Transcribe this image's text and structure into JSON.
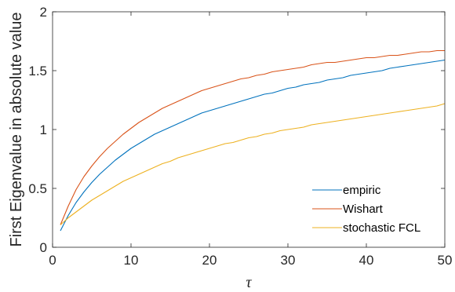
{
  "chart_data": {
    "type": "line",
    "xlabel": "τ",
    "ylabel": "First Eigenvalue in absolute value",
    "xlim": [
      0,
      50
    ],
    "ylim": [
      0,
      2
    ],
    "xticks": [
      0,
      10,
      20,
      30,
      40,
      50
    ],
    "yticks": [
      0,
      0.5,
      1,
      1.5,
      2
    ],
    "xtick_labels": [
      "0",
      "10",
      "20",
      "30",
      "40",
      "50"
    ],
    "ytick_labels": [
      "0",
      "0.5",
      "1",
      "1.5",
      "2"
    ],
    "grid": false,
    "legend_position": "bottom-right",
    "x": [
      1,
      2,
      3,
      4,
      5,
      6,
      7,
      8,
      9,
      10,
      11,
      12,
      13,
      14,
      15,
      16,
      17,
      18,
      19,
      20,
      21,
      22,
      23,
      24,
      25,
      26,
      27,
      28,
      29,
      30,
      31,
      32,
      33,
      34,
      35,
      36,
      37,
      38,
      39,
      40,
      41,
      42,
      43,
      44,
      45,
      46,
      47,
      48,
      49,
      50
    ],
    "series": [
      {
        "name": "empiric",
        "color": "#0072BD",
        "values": [
          0.14,
          0.27,
          0.38,
          0.47,
          0.55,
          0.62,
          0.68,
          0.74,
          0.79,
          0.84,
          0.88,
          0.92,
          0.96,
          0.99,
          1.02,
          1.05,
          1.08,
          1.11,
          1.14,
          1.16,
          1.18,
          1.2,
          1.22,
          1.24,
          1.26,
          1.28,
          1.3,
          1.31,
          1.33,
          1.35,
          1.36,
          1.38,
          1.39,
          1.4,
          1.42,
          1.43,
          1.44,
          1.46,
          1.47,
          1.48,
          1.49,
          1.5,
          1.52,
          1.53,
          1.54,
          1.55,
          1.56,
          1.57,
          1.58,
          1.59
        ]
      },
      {
        "name": "Wishart",
        "color": "#D95319",
        "values": [
          0.19,
          0.35,
          0.49,
          0.6,
          0.69,
          0.77,
          0.84,
          0.9,
          0.96,
          1.01,
          1.06,
          1.1,
          1.14,
          1.18,
          1.21,
          1.24,
          1.27,
          1.3,
          1.33,
          1.35,
          1.37,
          1.39,
          1.41,
          1.43,
          1.44,
          1.46,
          1.47,
          1.49,
          1.5,
          1.51,
          1.52,
          1.53,
          1.55,
          1.56,
          1.57,
          1.57,
          1.58,
          1.59,
          1.6,
          1.61,
          1.61,
          1.62,
          1.63,
          1.63,
          1.64,
          1.65,
          1.66,
          1.66,
          1.67,
          1.67
        ]
      },
      {
        "name": "stochastic FCL",
        "color": "#EDB120",
        "values": [
          0.19,
          0.25,
          0.3,
          0.35,
          0.4,
          0.44,
          0.48,
          0.52,
          0.56,
          0.59,
          0.62,
          0.65,
          0.68,
          0.71,
          0.73,
          0.76,
          0.78,
          0.8,
          0.82,
          0.84,
          0.86,
          0.88,
          0.89,
          0.91,
          0.93,
          0.94,
          0.96,
          0.97,
          0.99,
          1.0,
          1.01,
          1.02,
          1.04,
          1.05,
          1.06,
          1.07,
          1.08,
          1.09,
          1.1,
          1.11,
          1.12,
          1.13,
          1.14,
          1.15,
          1.16,
          1.17,
          1.18,
          1.19,
          1.2,
          1.22
        ]
      }
    ]
  }
}
